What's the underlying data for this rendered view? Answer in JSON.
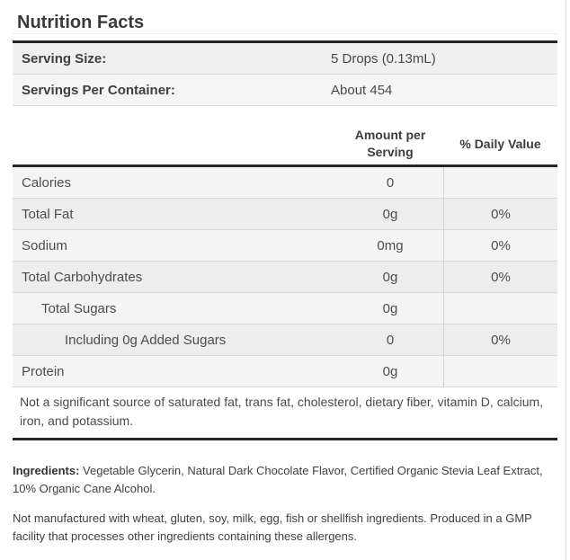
{
  "title": "Nutrition Facts",
  "serving_info": {
    "rows": [
      {
        "label": "Serving Size:",
        "value": "5 Drops (0.13mL)"
      },
      {
        "label": "Servings Per Container:",
        "value": "About 454"
      }
    ]
  },
  "nutrition_table": {
    "headers": {
      "amount": "Amount per Serving",
      "daily_value": "% Daily Value"
    },
    "rows": [
      {
        "label": "Calories",
        "amount": "0",
        "daily_value": "",
        "indent": 0
      },
      {
        "label": "Total Fat",
        "amount": "0g",
        "daily_value": "0%",
        "indent": 0
      },
      {
        "label": "Sodium",
        "amount": "0mg",
        "daily_value": "0%",
        "indent": 0
      },
      {
        "label": "Total Carbohydrates",
        "amount": "0g",
        "daily_value": "0%",
        "indent": 0
      },
      {
        "label": "Total Sugars",
        "amount": "0g",
        "daily_value": "",
        "indent": 1
      },
      {
        "label": "Including 0g Added Sugars",
        "amount": "0",
        "daily_value": "0%",
        "indent": 2
      },
      {
        "label": "Protein",
        "amount": "0g",
        "daily_value": "",
        "indent": 0
      }
    ],
    "footnote": "Not a significant source of saturated fat, trans fat, cholesterol, dietary fiber, vitamin D, calcium, iron, and potassium."
  },
  "ingredients": {
    "label": "Ingredients:",
    "text": "Vegetable Glycerin, Natural Dark Chocolate Flavor, Certified Organic Stevia Leaf Extract, 10% Organic Cane Alcohol."
  },
  "allergen_note": "Not manufactured with wheat, gluten, soy, milk, egg, fish or shellfish ingredients. Produced in a GMP facility that processes other ingredients containing these allergens.",
  "colors": {
    "rule_dark": "#262626",
    "row_light": "#f4f4f4",
    "row_dark": "#ededed",
    "divider": "#d9d9d9",
    "text": "#4a4a4a"
  }
}
